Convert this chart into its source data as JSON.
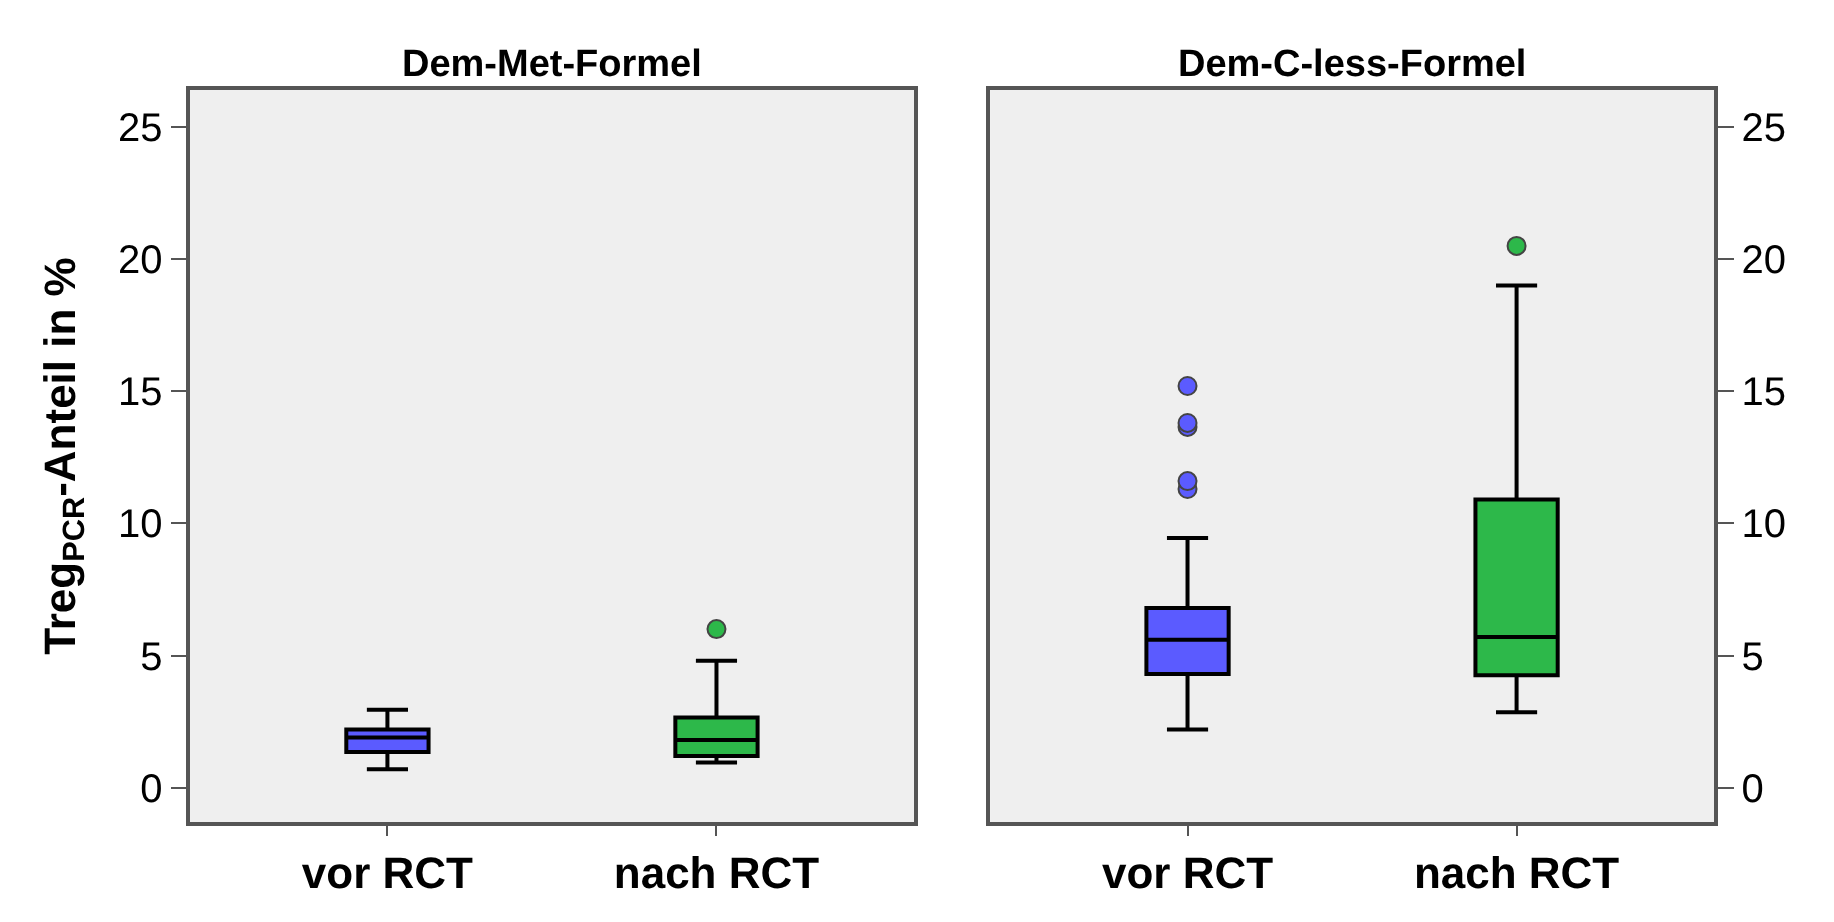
{
  "chart_data": [
    {
      "type": "box",
      "title": "Dem-Met-Formel",
      "ylabel": "Treg$_{PCR}$-Anteil in %",
      "categories": [
        "vor RCT",
        "nach RCT"
      ],
      "colors": [
        "#5b5bff",
        "#2db84a"
      ],
      "boxes": [
        {
          "low": 0.7,
          "q1": 1.35,
          "median": 1.9,
          "q3": 2.2,
          "high": 2.95
        },
        {
          "low": 0.95,
          "q1": 1.2,
          "median": 1.8,
          "q3": 2.65,
          "high": 4.8,
          "outliers": [
            6.0
          ]
        }
      ],
      "ylim": [
        -1.3,
        26.4
      ],
      "yticks": [
        0,
        5,
        10,
        15,
        20,
        25
      ],
      "grid": false,
      "marker": "circle"
    },
    {
      "type": "box",
      "title": "Dem-C-less-Formel",
      "categories": [
        "vor RCT",
        "nach RCT"
      ],
      "colors": [
        "#5b5bff",
        "#2db84a"
      ],
      "boxes": [
        {
          "low": 2.2,
          "q1": 4.3,
          "median": 5.6,
          "q3": 6.8,
          "high": 9.45,
          "outliers": [
            11.3,
            11.6,
            13.65,
            13.8,
            15.2
          ]
        },
        {
          "low": 2.85,
          "q1": 4.25,
          "median": 5.7,
          "q3": 10.9,
          "high": 19.0,
          "outliers": [
            20.5
          ]
        }
      ],
      "ylim": [
        -1.3,
        26.4
      ],
      "yticks": [
        0,
        5,
        10,
        15,
        20,
        25
      ],
      "grid": false,
      "marker": "circle"
    }
  ]
}
